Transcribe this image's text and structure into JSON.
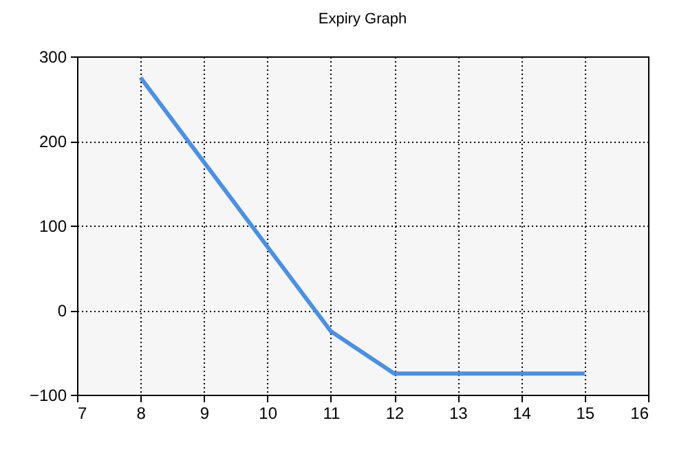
{
  "chart_data": {
    "type": "line",
    "title": "Expiry Graph",
    "x": [
      8,
      9,
      10,
      11,
      12,
      13,
      14,
      15
    ],
    "series": [
      {
        "color": "#4a8fe8",
        "values": [
          275,
          175,
          75,
          -25,
          -75,
          -75,
          -75,
          -75
        ]
      }
    ],
    "xlim": [
      7,
      16
    ],
    "xticks": [
      7,
      8,
      9,
      10,
      11,
      12,
      13,
      14,
      15,
      16
    ],
    "ylim": [
      -100,
      300
    ],
    "yticks": [
      -100,
      0,
      100,
      200,
      300
    ],
    "grid": true,
    "marker": "none",
    "line_style": "solid"
  }
}
